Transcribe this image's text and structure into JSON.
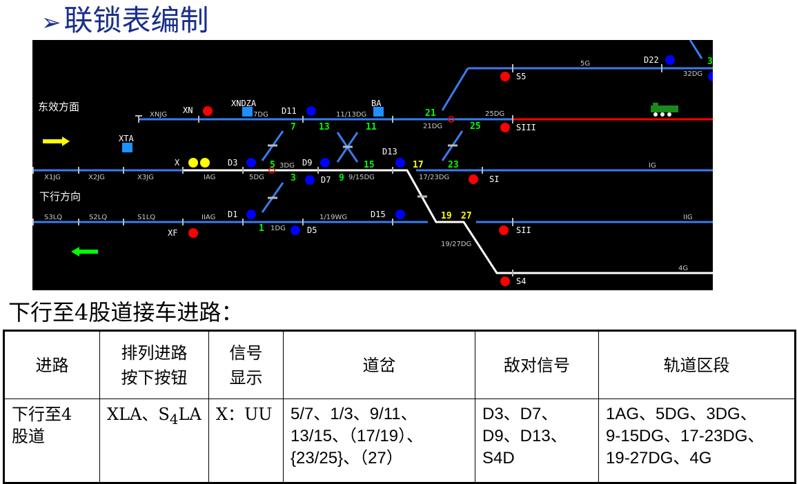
{
  "title": "联锁表编制",
  "title_bullet": "➢",
  "subtitle": "下行至4股道接车进路：",
  "diagram": {
    "directions": {
      "east": "东效方面",
      "down": "下行方向"
    },
    "sections": {
      "xnjg": "XNJG",
      "7dg": "7DG",
      "1113dg": "11/13DG",
      "21dg": "21DG",
      "25dg": "25DG",
      "5g": "5G",
      "32dg": "32DG",
      "x1jg": "X1JG",
      "x2jg": "X2JG",
      "x3jg": "X3JG",
      "iag": "IAG",
      "5dg": "5DG",
      "3dg": "3DG",
      "915dg": "9/15DG",
      "1723dg": "17/23DG",
      "ig": "IG",
      "s3lq": "S3LQ",
      "s2lq": "S2LQ",
      "s1lq": "S1LQ",
      "iiag": "IIAG",
      "1dg": "1DG",
      "119wg": "1/19WG",
      "1927dg": "19/27DG",
      "iig": "IIG",
      "4g": "4G"
    },
    "signals": {
      "xn": "XN",
      "xndza": "XNDZA",
      "d11": "D11",
      "ba": "BA",
      "xta": "XTA",
      "x": "X",
      "d3": "D3",
      "d9": "D9",
      "d13": "D13",
      "d7": "D7",
      "d1": "D1",
      "d15": "D15",
      "d5": "D5",
      "xf": "XF",
      "s5": "S5",
      "siii": "SIII",
      "si": "SI",
      "sii": "SII",
      "s4": "S4",
      "d22": "D22"
    },
    "switches": {
      "s7": "7",
      "s13": "13",
      "s11": "11",
      "s21": "21",
      "s25": "25",
      "s5": "5",
      "s15": "15",
      "s17": "17",
      "s23": "23",
      "s3": "3",
      "s9": "9",
      "s1": "1",
      "s19": "19",
      "s27": "27",
      "s3x": "3"
    },
    "colors": {
      "track": "#3a7cf0",
      "route": "#ffffff",
      "occupied": "#ff0000",
      "red_signal": "#ff0000",
      "blue_signal": "#0000ff",
      "yellow_signal": "#ffff00",
      "button": "#1e90ff"
    }
  },
  "table": {
    "headers": [
      "进路",
      "排列进路按下按钮",
      "信号显示",
      "道岔",
      "敌对信号",
      "轨道区段"
    ],
    "header_lines": [
      [
        "进路"
      ],
      [
        "排列进路",
        "按下按钮"
      ],
      [
        "信号",
        "显示"
      ],
      [
        "道岔"
      ],
      [
        "敌对信号"
      ],
      [
        "轨道区段"
      ]
    ],
    "row": {
      "route": [
        "下行至4",
        "股道"
      ],
      "buttons": "XLA、S",
      "buttons_sub": "4",
      "buttons_tail": "LA",
      "signal": "X：UU",
      "switches": [
        "5/7、1/3、9/11、",
        "13/15、（17/19）、",
        "{23/25}、（27）"
      ],
      "hostile": [
        "D3、D7、",
        "D9、D13、",
        "S4D"
      ],
      "sections": [
        "1AG、5DG、3DG、",
        "9-15DG、17-23DG、",
        "19-27DG、4G"
      ]
    }
  }
}
